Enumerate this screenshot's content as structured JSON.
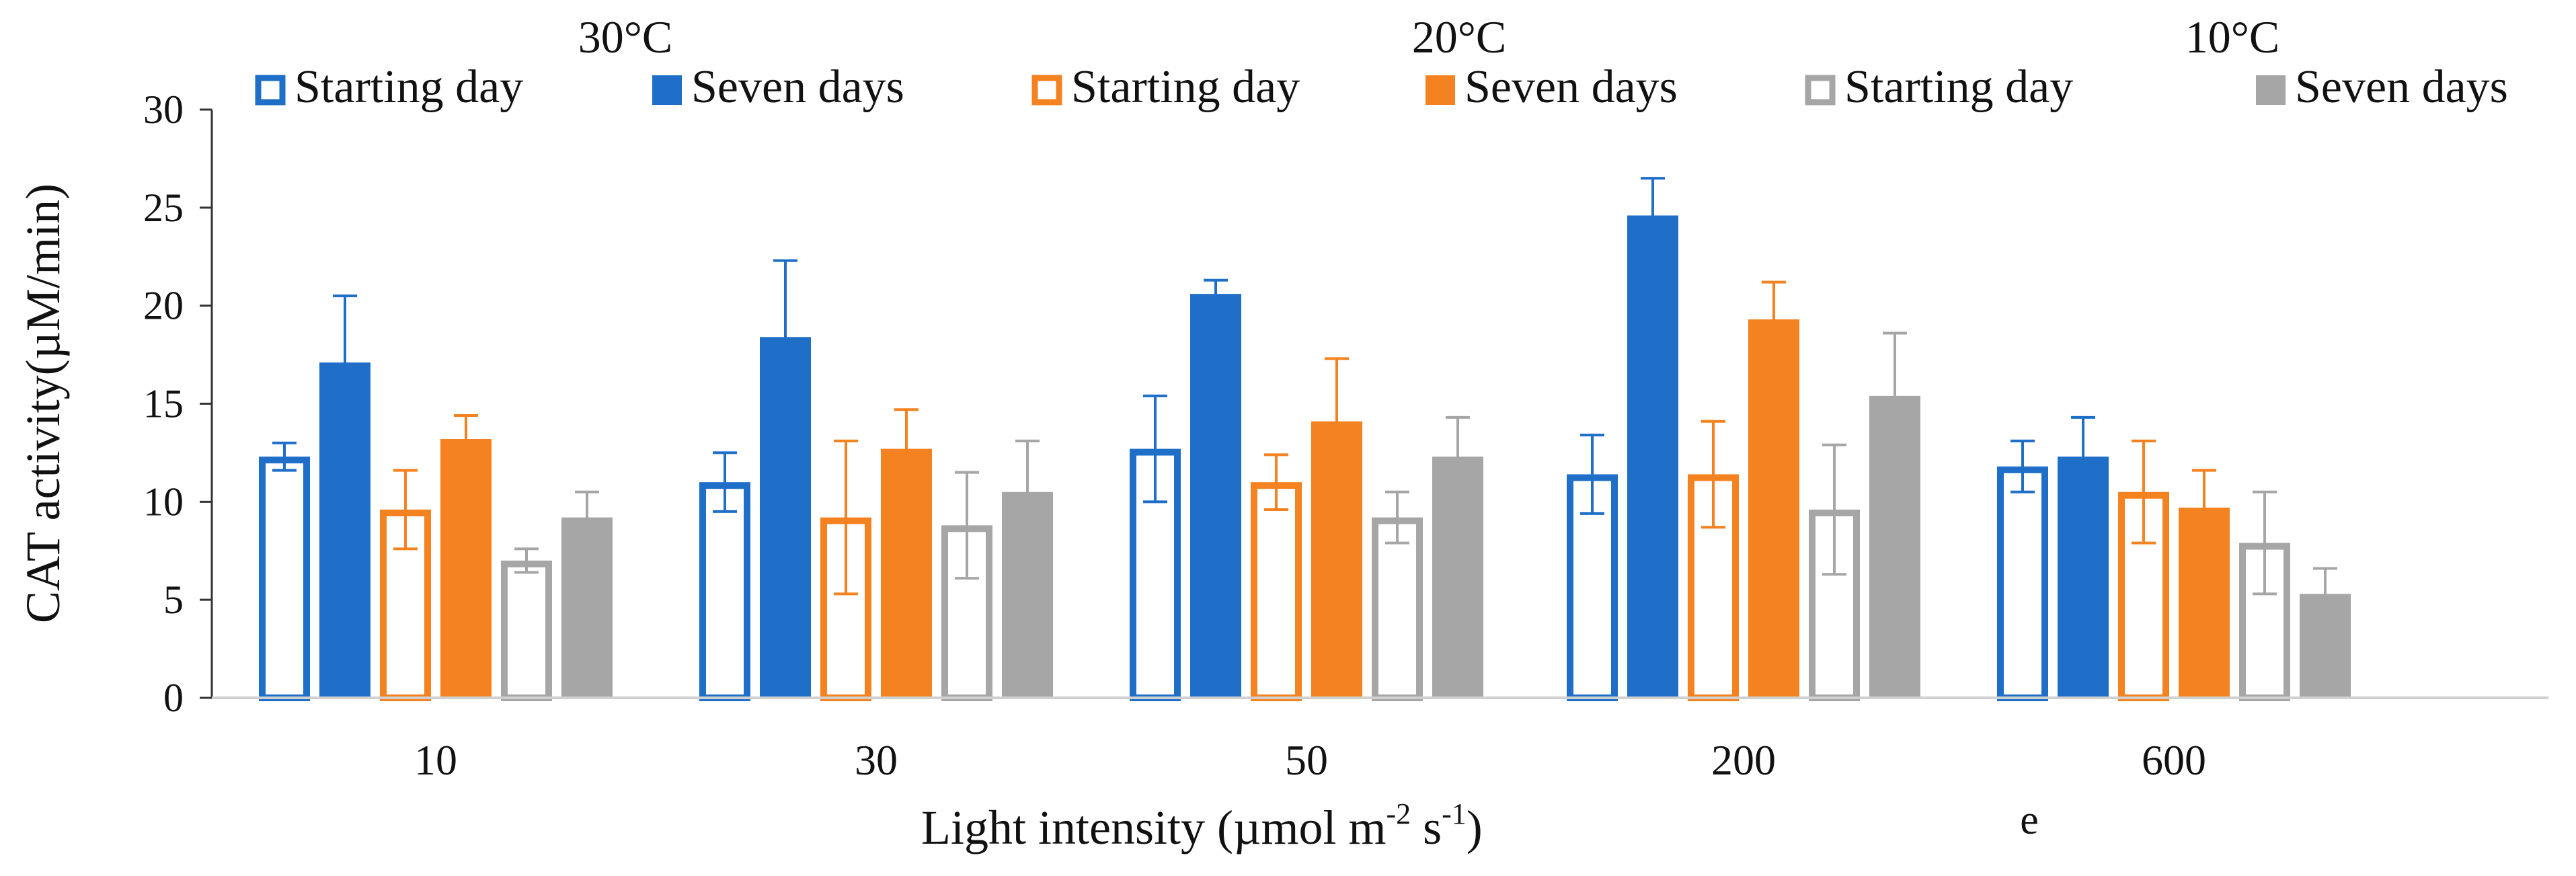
{
  "chart_data": {
    "type": "bar",
    "title": "",
    "xlabel": "Light intensity (µmol m",
    "xlabel_sup1": "-2",
    "xlabel_mid": " s",
    "xlabel_sup2": "-1",
    "xlabel_end": ")",
    "ylabel": "CAT activity(µM/min)",
    "ylim": [
      0,
      30
    ],
    "yticks": [
      "0",
      "5",
      "10",
      "15",
      "20",
      "25",
      "30"
    ],
    "categories": [
      "10",
      "30",
      "50",
      "200",
      "600"
    ],
    "temperature_labels": [
      "30°C",
      "20°C",
      "10°C"
    ],
    "panel_letter": "e",
    "grid": false,
    "legend_position": "top",
    "series": [
      {
        "name": "Starting day",
        "group": "30°C",
        "color": "#1f6fc8",
        "style": "hollow",
        "values": [
          12.3,
          11.0,
          12.7,
          11.4,
          11.8
        ],
        "errors": [
          0.7,
          1.5,
          2.7,
          2.0,
          1.3
        ]
      },
      {
        "name": "Seven days",
        "group": "30°C",
        "color": "#1f6fc8",
        "style": "solid",
        "values": [
          17.1,
          18.4,
          20.6,
          24.6,
          12.3
        ],
        "errors": [
          3.4,
          3.9,
          0.7,
          1.9,
          2.0
        ]
      },
      {
        "name": "Starting day",
        "group": "20°C",
        "color": "#f58220",
        "style": "hollow",
        "values": [
          9.6,
          9.2,
          11.0,
          11.4,
          10.5
        ],
        "errors": [
          2.0,
          3.9,
          1.4,
          2.7,
          2.6
        ]
      },
      {
        "name": "Seven days",
        "group": "20°C",
        "color": "#f58220",
        "style": "solid",
        "values": [
          13.2,
          12.7,
          14.1,
          19.3,
          9.7
        ],
        "errors": [
          1.2,
          2.0,
          3.2,
          1.9,
          1.9
        ]
      },
      {
        "name": "Starting day",
        "group": "10°C",
        "color": "#a6a6a6",
        "style": "hollow",
        "values": [
          7.0,
          8.8,
          9.2,
          9.6,
          7.9
        ],
        "errors": [
          0.6,
          2.7,
          1.3,
          3.3,
          2.6
        ]
      },
      {
        "name": "Seven days",
        "group": "10°C",
        "color": "#a6a6a6",
        "style": "solid",
        "values": [
          9.2,
          10.5,
          12.3,
          15.4,
          5.3
        ],
        "errors": [
          1.3,
          2.6,
          2.0,
          3.2,
          1.3
        ]
      }
    ]
  }
}
